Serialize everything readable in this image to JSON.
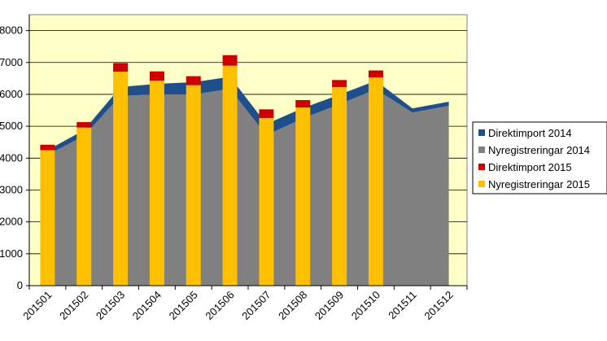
{
  "chart_data": {
    "type": "bar",
    "title": "",
    "xlabel": "",
    "ylabel": "",
    "ylim": [
      0,
      8500
    ],
    "y_tick_step": 1000,
    "y_ticks": [
      "0",
      "1000",
      "2000",
      "3000",
      "4000",
      "5000",
      "6000",
      "7000",
      "8000"
    ],
    "grid": true,
    "legend_position": "right",
    "categories": [
      "201501",
      "201502",
      "201503",
      "201504",
      "201505",
      "201506",
      "201507",
      "201508",
      "201509",
      "201510",
      "201511",
      "201512"
    ],
    "series": [
      {
        "name": "Direktimport 2014",
        "kind": "stacked-area",
        "color": "#1F4E8C",
        "values": [
          150,
          180,
          280,
          330,
          380,
          380,
          350,
          320,
          300,
          270,
          130,
          130
        ]
      },
      {
        "name": "Nyregistreringar 2014",
        "kind": "stacked-area",
        "color": "#808080",
        "values": [
          4100,
          4700,
          5950,
          6000,
          6000,
          6170,
          4720,
          5250,
          5690,
          6160,
          5430,
          5640
        ]
      },
      {
        "name": "Direktimport 2015",
        "kind": "stacked-bar",
        "color": "#CC0000",
        "values": [
          170,
          170,
          270,
          290,
          280,
          330,
          270,
          230,
          220,
          220,
          null,
          null
        ]
      },
      {
        "name": "Nyregistreringar 2015",
        "kind": "stacked-bar",
        "color": "#FFC000",
        "values": [
          4250,
          4960,
          6710,
          6430,
          6290,
          6900,
          5260,
          5590,
          6230,
          6530,
          null,
          null
        ]
      }
    ]
  }
}
